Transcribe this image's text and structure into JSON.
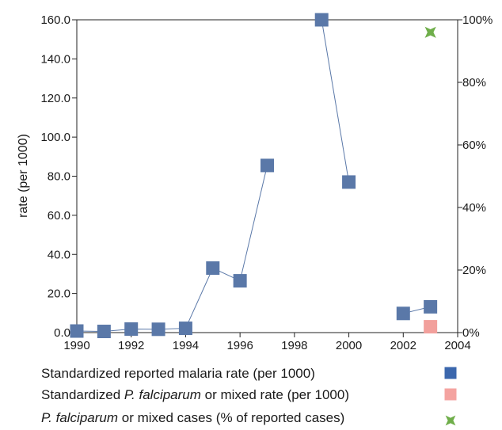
{
  "chart_data": {
    "type": "line",
    "title": "",
    "xlabel": "",
    "ylabel": "rate (per 1000)",
    "xlim": [
      1990,
      2004
    ],
    "ylim": [
      0,
      160
    ],
    "y2lim": [
      0,
      100
    ],
    "x_ticks": [
      1990,
      1992,
      1994,
      1996,
      1998,
      2000,
      2002,
      2004
    ],
    "x_tick_labels": [
      "1990",
      "1992",
      "1994",
      "1996",
      "1998",
      "2000",
      "2002",
      "2004"
    ],
    "y_ticks": [
      0,
      20,
      40,
      60,
      80,
      100,
      120,
      140,
      160
    ],
    "y_tick_labels": [
      "0.0",
      "20.0",
      "40.0",
      "60.0",
      "80.0",
      "100.0",
      "120.0",
      "140.0",
      "160.0"
    ],
    "y2_ticks": [
      0,
      20,
      40,
      60,
      80,
      100
    ],
    "y2_tick_labels": [
      "0%",
      "20%",
      "40%",
      "60%",
      "80%",
      "100%"
    ],
    "grid": false,
    "legend_position": "bottom",
    "series": [
      {
        "name": "Standardized reported malaria rate (per 1000)",
        "color": "#5a78a8",
        "legend_color": "#3b67ad",
        "marker": "square",
        "axis": "left",
        "segments": [
          [
            [
              1990,
              0.8
            ],
            [
              1991,
              0.6
            ],
            [
              1992,
              1.8
            ],
            [
              1993,
              1.7
            ],
            [
              1994,
              2.2
            ],
            [
              1995,
              33
            ],
            [
              1996,
              26.5
            ],
            [
              1997,
              85.5
            ]
          ],
          [
            [
              1999,
              160
            ],
            [
              2000,
              77
            ]
          ],
          [
            [
              2002,
              9.8
            ],
            [
              2003,
              13.2
            ]
          ]
        ]
      },
      {
        "name": "Standardized P. falciparum or mixed rate (per 1000)",
        "color": "#f2a09c",
        "legend_color": "#f4a3a0",
        "marker": "square",
        "axis": "left",
        "segments": [
          [
            [
              2003,
              3
            ]
          ]
        ]
      },
      {
        "name": "P. falciparum or mixed cases (% of reported cases)",
        "color": "#6fae4a",
        "legend_color": "#6fae4a",
        "marker": "star",
        "axis": "right",
        "segments": [
          [
            [
              2003,
              96
            ]
          ]
        ]
      }
    ],
    "legend": [
      {
        "parts": [
          {
            "text": "Standardized reported malaria rate (per 1000)",
            "italic": false
          }
        ]
      },
      {
        "parts": [
          {
            "text": "Standardized ",
            "italic": false
          },
          {
            "text": "P. falciparum",
            "italic": true
          },
          {
            "text": " or mixed rate (per 1000)",
            "italic": false
          }
        ]
      },
      {
        "parts": [
          {
            "text": "P. falciparum",
            "italic": true
          },
          {
            "text": " or mixed cases  (% of reported cases)",
            "italic": false
          }
        ]
      }
    ]
  }
}
